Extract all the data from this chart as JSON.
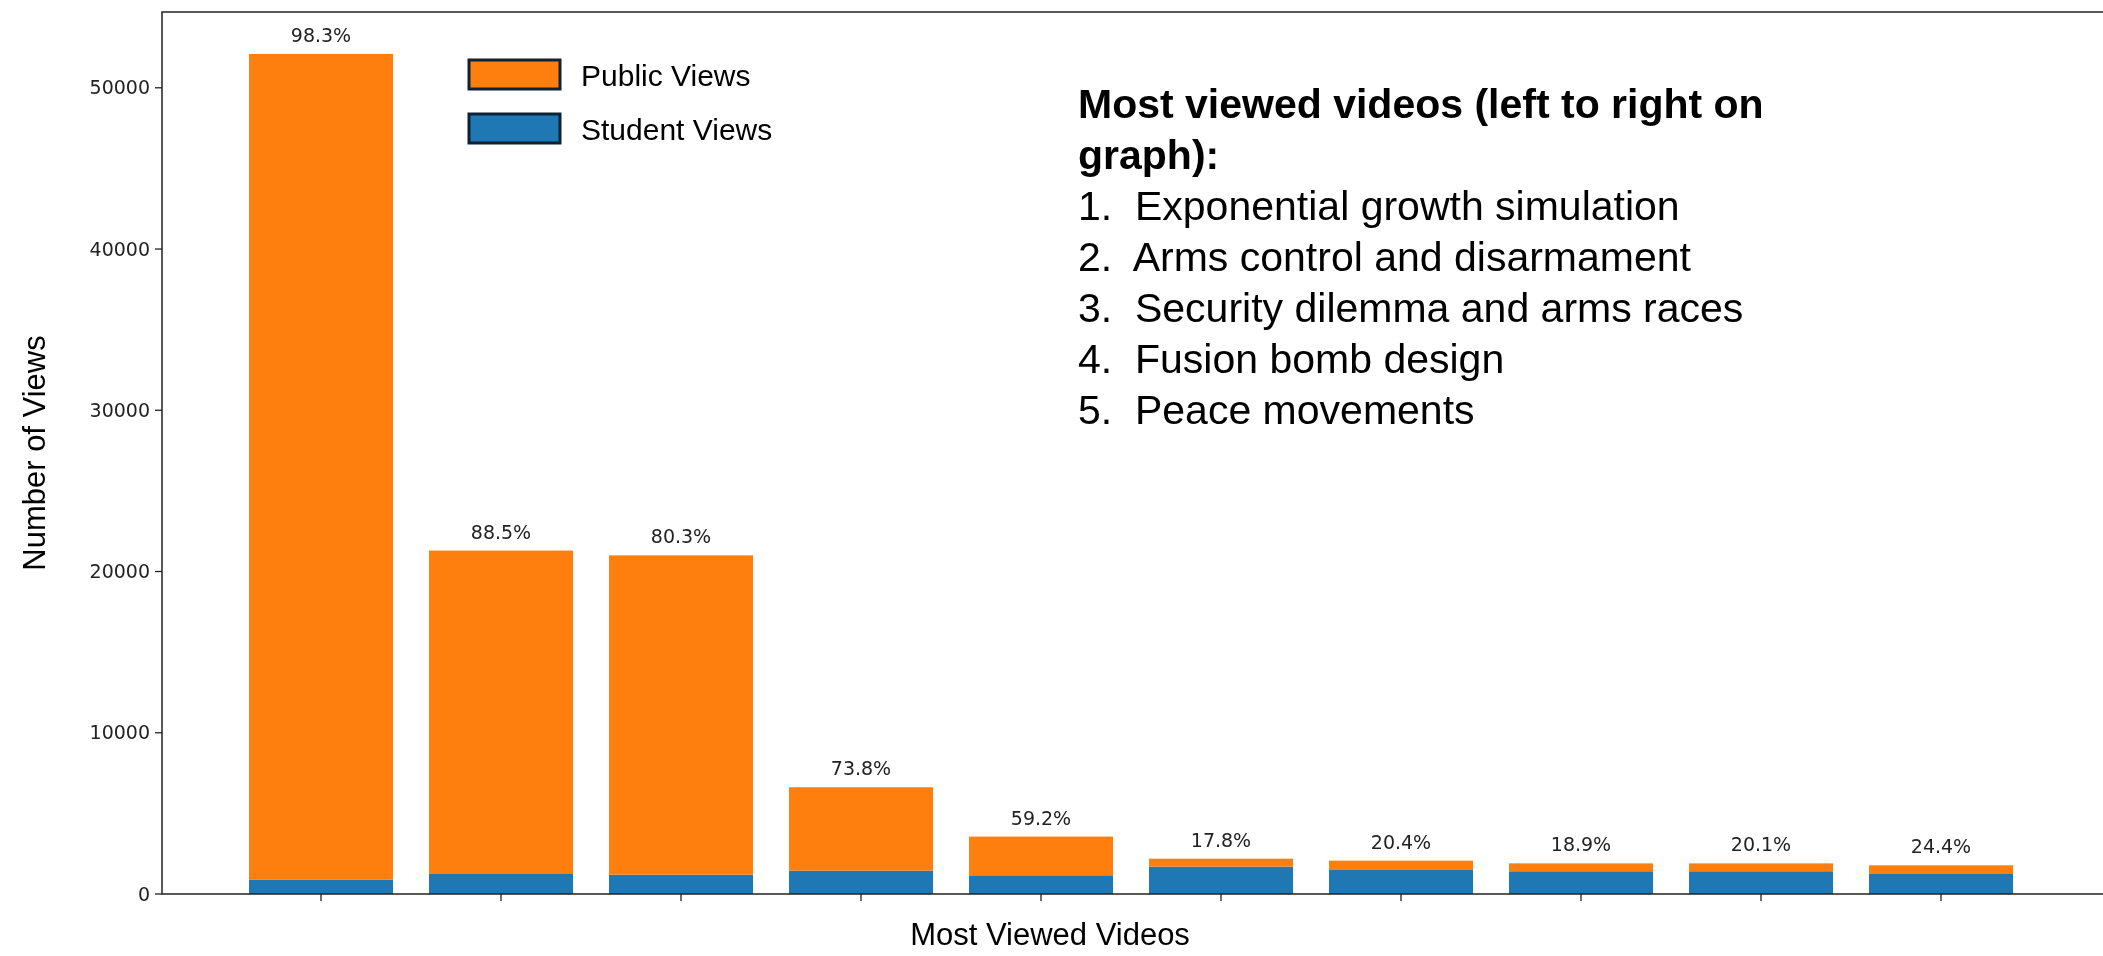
{
  "chart_data": {
    "type": "bar",
    "stacked": true,
    "xlabel": "Most Viewed Videos",
    "ylabel": "Number of Views",
    "categories": [
      null,
      null,
      null,
      null,
      null,
      null,
      null,
      null,
      null,
      null
    ],
    "series": [
      {
        "name": "Student Views",
        "color": "#1f77b4",
        "values": [
          900,
          1240,
          1200,
          1450,
          1160,
          1700,
          1490,
          1410,
          1410,
          1240
        ]
      },
      {
        "name": "Public Views",
        "color": "#ff7f0e",
        "values": [
          51200,
          20060,
          19800,
          5170,
          2400,
          490,
          580,
          490,
          490,
          540
        ]
      }
    ],
    "ylim": [
      0,
      54700
    ],
    "yticks": [
      0,
      10000,
      20000,
      30000,
      40000,
      50000
    ],
    "grid": false,
    "legend": "top left",
    "annotations": [
      {
        "text": "98.3%",
        "y": 52100
      },
      {
        "text": "88.5%",
        "y": 21300
      },
      {
        "text": "80.3%",
        "y": 21000
      },
      {
        "text": "73.8%",
        "y": 6620
      },
      {
        "text": "59.2%",
        "y": 3560
      },
      {
        "text": "17.8%",
        "y": 2190
      },
      {
        "text": "20.4%",
        "y": 2070
      },
      {
        "text": "18.9%",
        "y": 1900
      },
      {
        "text": "20.1%",
        "y": 1900
      },
      {
        "text": "24.4%",
        "y": 1780
      },
      "Most viewed videos (left to right on graph):",
      "1.  Exponential growth simulation",
      "2.  Arms control and disarmament",
      "3.  Security dilemma and arms races",
      "4.  Fusion bomb design",
      "5.  Peace movements"
    ]
  }
}
